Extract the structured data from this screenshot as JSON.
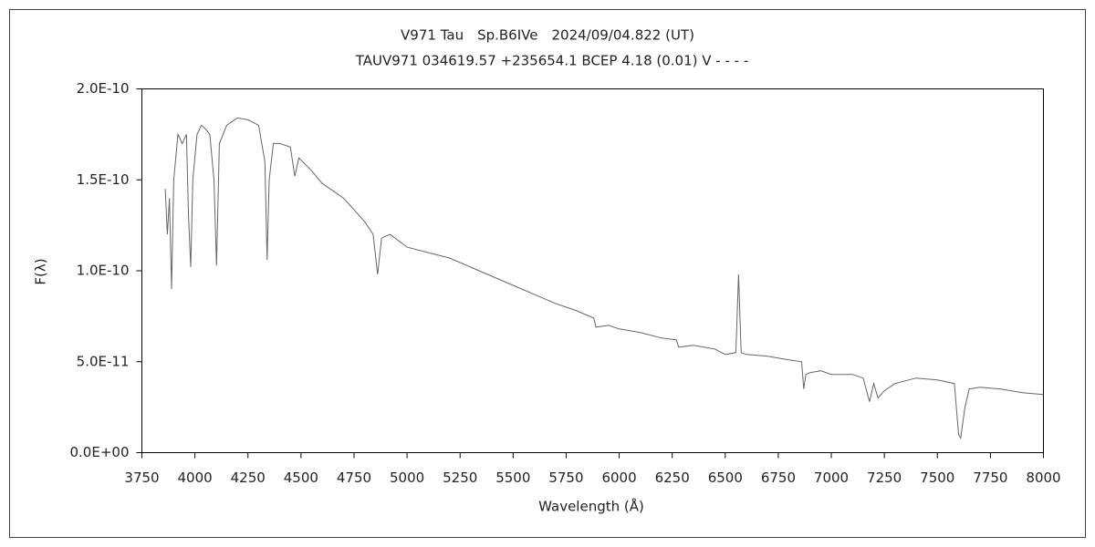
{
  "chart_data": {
    "type": "line",
    "title": "V971 Tau　Sp.B6IVe　2024/09/04.822 (UT)",
    "subtitle": "TAUV971 034619.57 +235654.1 BCEP 4.18 (0.01) V - - - -",
    "x_label": "Wavelength (Å)",
    "y_label": "F(λ)",
    "xlim": [
      3750,
      8000
    ],
    "xticks": [
      3750,
      4000,
      4250,
      4500,
      4750,
      5000,
      5250,
      5500,
      5750,
      6000,
      6250,
      6500,
      6750,
      7000,
      7250,
      7500,
      7750,
      8000
    ],
    "ylim": [
      0,
      2e-10
    ],
    "yticks": [
      {
        "value": 0,
        "label": "0.0E+00"
      },
      {
        "value": 5e-11,
        "label": "5.0E-11"
      },
      {
        "value": 1e-10,
        "label": "1.0E-10"
      },
      {
        "value": 1.5e-10,
        "label": "1.5E-10"
      },
      {
        "value": 2e-10,
        "label": "2.0E-10"
      }
    ],
    "color": "#666666",
    "x": [
      3860,
      3870,
      3880,
      3890,
      3900,
      3920,
      3940,
      3960,
      3970,
      3980,
      3990,
      4010,
      4030,
      4050,
      4070,
      4090,
      4102,
      4115,
      4150,
      4200,
      4250,
      4300,
      4330,
      4340,
      4350,
      4370,
      4400,
      4450,
      4471,
      4490,
      4550,
      4600,
      4700,
      4800,
      4840,
      4861,
      4880,
      4920,
      5000,
      5100,
      5200,
      5300,
      5400,
      5500,
      5600,
      5700,
      5800,
      5880,
      5890,
      5950,
      6000,
      6100,
      6200,
      6270,
      6280,
      6350,
      6450,
      6500,
      6550,
      6563,
      6575,
      6600,
      6700,
      6800,
      6860,
      6870,
      6880,
      6900,
      6950,
      7000,
      7100,
      7150,
      7180,
      7200,
      7220,
      7250,
      7300,
      7400,
      7500,
      7580,
      7600,
      7610,
      7630,
      7650,
      7700,
      7800,
      7900,
      8000
    ],
    "values": [
      1.45e-10,
      1.2e-10,
      1.4e-10,
      9e-11,
      1.5e-10,
      1.75e-10,
      1.7e-10,
      1.75e-10,
      1.3e-10,
      1.02e-10,
      1.5e-10,
      1.75e-10,
      1.8e-10,
      1.78e-10,
      1.75e-10,
      1.5e-10,
      1.03e-10,
      1.7e-10,
      1.8e-10,
      1.84e-10,
      1.83e-10,
      1.8e-10,
      1.6e-10,
      1.06e-10,
      1.5e-10,
      1.7e-10,
      1.7e-10,
      1.68e-10,
      1.52e-10,
      1.62e-10,
      1.55e-10,
      1.48e-10,
      1.4e-10,
      1.27e-10,
      1.2e-10,
      9.8e-11,
      1.18e-10,
      1.2e-10,
      1.13e-10,
      1.1e-10,
      1.07e-10,
      1.02e-10,
      9.7e-11,
      9.2e-11,
      8.7e-11,
      8.2e-11,
      7.8e-11,
      7.4e-11,
      6.9e-11,
      7e-11,
      6.8e-11,
      6.6e-11,
      6.3e-11,
      6.2e-11,
      5.8e-11,
      5.9e-11,
      5.7e-11,
      5.4e-11,
      5.5e-11,
      9.8e-11,
      5.5e-11,
      5.4e-11,
      5.3e-11,
      5.1e-11,
      5e-11,
      3.5e-11,
      4.3e-11,
      4.4e-11,
      4.5e-11,
      4.3e-11,
      4.3e-11,
      4.1e-11,
      2.8e-11,
      3.8e-11,
      3e-11,
      3.4e-11,
      3.8e-11,
      4.1e-11,
      4e-11,
      3.8e-11,
      1e-11,
      8e-12,
      2.5e-11,
      3.5e-11,
      3.6e-11,
      3.5e-11,
      3.3e-11,
      3.2e-11
    ]
  }
}
